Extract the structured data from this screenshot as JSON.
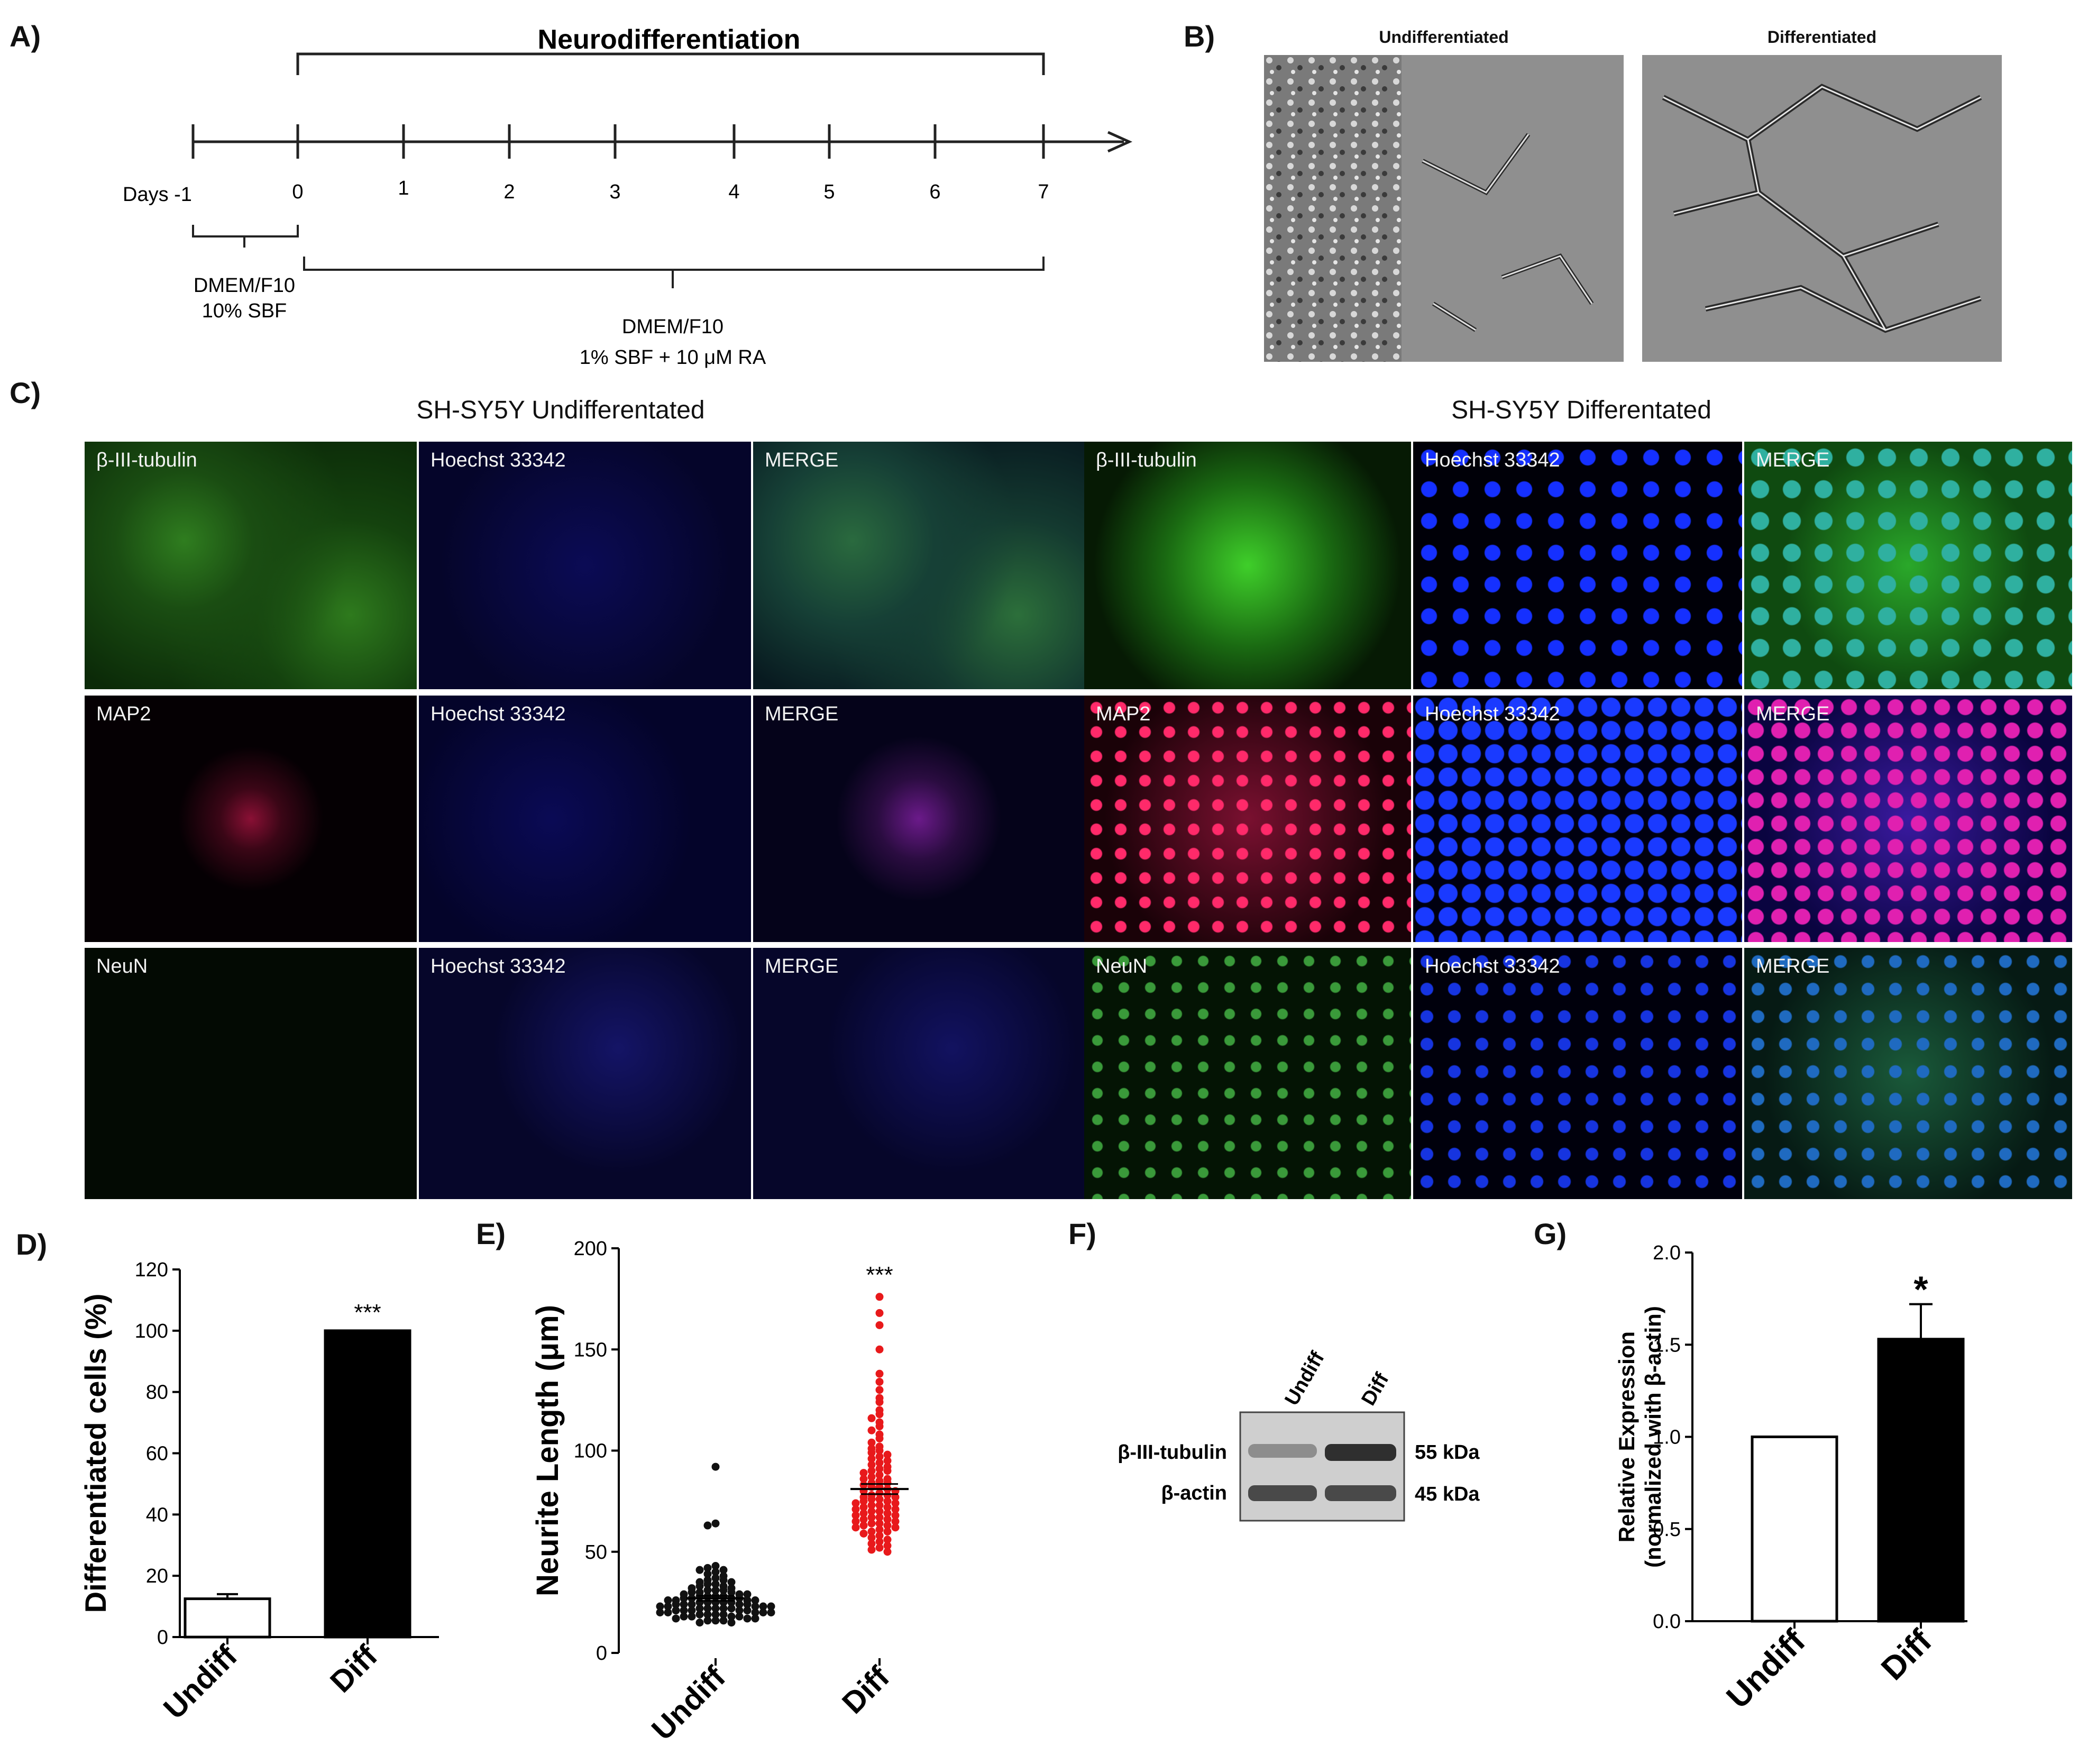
{
  "panels": {
    "a": {
      "label": "A)",
      "title": "Neurodifferentiation",
      "days_label": "Days -1",
      "days": [
        "0",
        "1",
        "2",
        "3",
        "4",
        "5",
        "6",
        "7"
      ],
      "medium1_line1": "DMEM/F10",
      "medium1_line2": "10% SBF",
      "medium2_line1": "DMEM/F10",
      "medium2_line2": "1% SBF  +  10 μM RA"
    },
    "b": {
      "label": "B)",
      "left_title": "Undifferentiated",
      "right_title": "Differentiated"
    },
    "c": {
      "label": "C)",
      "left_title": "SH-SY5Y Undifferentated",
      "right_title": "SH-SY5Y Differentated",
      "rows": [
        [
          "β-III-tubulin",
          "Hoechst 33342",
          "MERGE",
          "β-III-tubulin",
          "Hoechst 33342",
          "MERGE"
        ],
        [
          "MAP2",
          "Hoechst 33342",
          "MERGE",
          "MAP2",
          "Hoechst 33342",
          "MERGE"
        ],
        [
          "NeuN",
          "Hoechst 33342",
          "MERGE",
          "NeuN",
          "Hoechst 33342",
          "MERGE"
        ]
      ]
    },
    "d": {
      "label": "D)"
    },
    "e": {
      "label": "E)"
    },
    "f": {
      "label": "F)",
      "lane1": "Undiff",
      "lane2": "Diff",
      "band1": "β-III-tubulin",
      "band2": "β-actin",
      "size1": "55 kDa",
      "size2": "45 kDa",
      "band_intensity": {
        "beta_iii_tubulin": [
          0.35,
          0.9
        ],
        "beta_actin": [
          0.75,
          0.75
        ]
      }
    },
    "g": {
      "label": "G)"
    }
  },
  "chart_data": [
    {
      "id": "D",
      "type": "bar",
      "categories": [
        "Undiff",
        "Diff"
      ],
      "values": [
        12.5,
        100
      ],
      "errors": [
        1.5,
        0
      ],
      "fills": [
        "#ffffff",
        "#000000"
      ],
      "ylabel": "Differentiated cells (%)",
      "ylim": [
        0,
        120
      ],
      "yticks": [
        "0",
        "20",
        "40",
        "60",
        "80",
        "100",
        "120"
      ],
      "annotation": "***"
    },
    {
      "id": "E",
      "type": "scatter",
      "categories": [
        "Undiff",
        "Diff"
      ],
      "series": [
        {
          "values": [
            92,
            64,
            63,
            43,
            42,
            41,
            41,
            40,
            39,
            38,
            37,
            36,
            36,
            35,
            35,
            34,
            34,
            33,
            33,
            32,
            32,
            31,
            31,
            31,
            30,
            30,
            30,
            29,
            29,
            29,
            28,
            28,
            28,
            28,
            27,
            27,
            27,
            27,
            26,
            26,
            26,
            26,
            25,
            25,
            25,
            25,
            25,
            24,
            24,
            24,
            24,
            24,
            23,
            23,
            23,
            23,
            23,
            22,
            22,
            22,
            22,
            22,
            21,
            21,
            21,
            21,
            21,
            20,
            20,
            20,
            20,
            20,
            19,
            19,
            19,
            19,
            18,
            18,
            18,
            18,
            17,
            17,
            17,
            16,
            16,
            16,
            15,
            15
          ],
          "color": "#111111",
          "mean": 27,
          "sem": 1.2
        },
        {
          "values": [
            176,
            168,
            162,
            150,
            138,
            134,
            130,
            126,
            124,
            120,
            118,
            116,
            114,
            112,
            110,
            108,
            106,
            104,
            102,
            101,
            100,
            99,
            98,
            97,
            96,
            95,
            94,
            93,
            92,
            91,
            90,
            90,
            89,
            88,
            87,
            86,
            86,
            85,
            84,
            84,
            83,
            82,
            82,
            81,
            80,
            80,
            79,
            78,
            78,
            77,
            77,
            76,
            76,
            75,
            75,
            74,
            74,
            73,
            73,
            72,
            72,
            71,
            71,
            70,
            70,
            69,
            69,
            68,
            68,
            67,
            67,
            66,
            66,
            65,
            65,
            64,
            64,
            63,
            63,
            62,
            62,
            61,
            60,
            60,
            59,
            58,
            57,
            56,
            55,
            54,
            53,
            52,
            51,
            50
          ],
          "color": "#e8191b",
          "mean": 81,
          "sem": 2.5
        }
      ],
      "ylabel": "Neurite Length (μm)",
      "ylim": [
        0,
        200
      ],
      "yticks": [
        "0",
        "50",
        "100",
        "150",
        "200"
      ],
      "annotation": "***"
    },
    {
      "id": "G",
      "type": "bar",
      "categories": [
        "Undiff",
        "Diff"
      ],
      "values": [
        1.0,
        1.53
      ],
      "errors": [
        0,
        0.19
      ],
      "fills": [
        "#ffffff",
        "#000000"
      ],
      "ylabel_line1": "Relative Expression",
      "ylabel_line2": "(normalized with  β-actin)",
      "ylim": [
        0,
        2.0
      ],
      "yticks": [
        "0.0",
        "0.5",
        "1.0",
        "1.5",
        "2.0"
      ],
      "annotation": "*"
    }
  ]
}
